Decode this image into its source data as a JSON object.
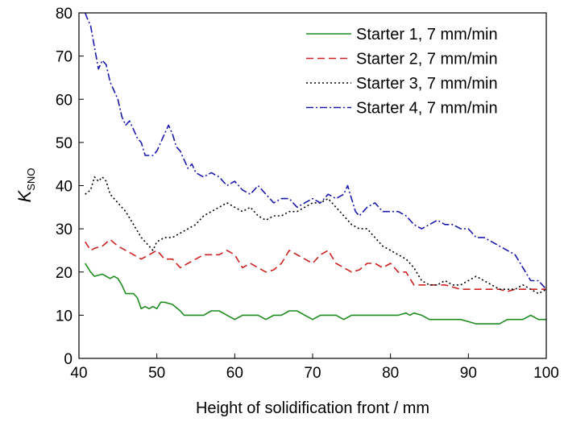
{
  "chart_data": {
    "type": "line",
    "title": "",
    "xlabel": "Height of solidification front / mm",
    "ylabel_main": "K",
    "ylabel_sub": "SNO",
    "xlim": [
      40,
      100
    ],
    "ylim": [
      0,
      80
    ],
    "xticks": [
      40,
      50,
      60,
      70,
      80,
      90,
      100
    ],
    "yticks": [
      0,
      10,
      20,
      30,
      40,
      50,
      60,
      70,
      80
    ],
    "grid": false,
    "legend_position": "top-right",
    "series": [
      {
        "name": "Starter 1, 7 mm/min",
        "color": "#1e8c1e",
        "dash": "solid",
        "x": [
          40.8,
          41.5,
          42,
          43,
          44,
          44.5,
          45,
          45.5,
          46,
          46.5,
          47,
          47.5,
          48,
          48.5,
          49,
          49.5,
          50,
          50.5,
          51,
          52,
          53,
          53.5,
          54,
          55,
          56,
          57,
          58,
          59,
          60,
          61,
          62,
          63,
          64,
          65,
          66,
          67,
          68,
          69,
          69.5,
          70,
          71,
          72,
          73,
          74,
          75,
          76,
          77,
          78,
          79,
          80,
          81,
          82,
          82.5,
          83,
          84,
          85,
          86,
          87,
          88,
          89,
          90,
          91,
          92,
          93,
          94,
          95,
          96,
          97,
          98,
          99,
          100
        ],
        "y": [
          22,
          20,
          19,
          19.5,
          18.5,
          19,
          18.5,
          17,
          15,
          15,
          15,
          14,
          11.5,
          12,
          11.5,
          12,
          11.5,
          13,
          13,
          12.5,
          11,
          10,
          10,
          10,
          10,
          11,
          11,
          10,
          9,
          10,
          10,
          10,
          9,
          10,
          10,
          11,
          11,
          10,
          9.5,
          9,
          10,
          10,
          10,
          9,
          10,
          10,
          10,
          10,
          10,
          10,
          10,
          10.5,
          10,
          10.5,
          10,
          9,
          9,
          9,
          9,
          9,
          8.5,
          8,
          8,
          8,
          8,
          9,
          9,
          9,
          10,
          9,
          9
        ]
      },
      {
        "name": "Starter 2, 7 mm/min",
        "color": "#cc2222",
        "dash": "dashed",
        "x": [
          40.8,
          41.5,
          42,
          43,
          44,
          45,
          46,
          47,
          48,
          49,
          50,
          51,
          52,
          53,
          54,
          55,
          56,
          57,
          58,
          59,
          60,
          61,
          62,
          63,
          64,
          65,
          66,
          67,
          68,
          69,
          70,
          71,
          72,
          73,
          74,
          75,
          76,
          77,
          78,
          79,
          80,
          81,
          82,
          83,
          84,
          85,
          86,
          87,
          88,
          89,
          90,
          91,
          92,
          93,
          94,
          95,
          96,
          97,
          98,
          99,
          100
        ],
        "y": [
          27,
          25,
          25.5,
          26,
          27.5,
          26,
          25,
          24,
          23,
          24,
          25,
          23,
          23,
          21,
          22,
          23,
          24,
          24,
          24,
          25,
          24,
          21,
          22,
          21,
          20,
          20.5,
          22,
          25,
          24,
          23,
          22,
          24,
          25,
          22,
          21,
          20,
          20.5,
          22,
          22,
          21,
          22,
          20,
          20,
          17,
          17,
          17,
          17,
          17,
          16.5,
          16,
          16,
          16,
          16,
          16,
          16,
          15.5,
          16,
          16,
          16,
          16,
          16
        ]
      },
      {
        "name": "Starter 3, 7 mm/min",
        "color": "#000000",
        "dash": "dotted",
        "x": [
          40.8,
          41.5,
          42,
          42.5,
          43,
          43.5,
          44,
          45,
          46,
          47,
          48,
          49,
          49.5,
          50,
          51,
          52,
          53,
          54,
          55,
          56,
          57,
          58,
          59,
          60,
          61,
          62,
          63,
          64,
          65,
          66,
          67,
          68,
          69,
          70,
          71,
          72,
          73,
          74,
          75,
          76,
          77,
          78,
          79,
          80,
          81,
          82,
          83,
          84,
          85,
          86,
          87,
          88,
          89,
          90,
          91,
          92,
          93,
          94,
          95,
          96,
          97,
          98,
          99,
          100
        ],
        "y": [
          38,
          39,
          42,
          41,
          42,
          41,
          38,
          36,
          34,
          31,
          28,
          26,
          25,
          27,
          28,
          28,
          29,
          30,
          31,
          33,
          34,
          35,
          36,
          35,
          34,
          35,
          33,
          32,
          33,
          33,
          34,
          34,
          35,
          36,
          36,
          37,
          35,
          33,
          31,
          30,
          30,
          28,
          26,
          25,
          24,
          23,
          21,
          18,
          17,
          17,
          18,
          17,
          17,
          18,
          19,
          18,
          17,
          16,
          16,
          16,
          17,
          16,
          15,
          16
        ]
      },
      {
        "name": "Starter 4, 7 mm/min",
        "color": "#1a1aaa",
        "dash": "dashdot",
        "x": [
          40.8,
          41,
          41.5,
          42,
          42.5,
          43,
          43.5,
          44,
          44.5,
          45,
          45.5,
          46,
          46.5,
          47,
          47.5,
          48,
          48.5,
          49,
          49.5,
          50,
          50.5,
          51,
          51.5,
          52,
          52.5,
          53,
          53.5,
          54,
          54.5,
          55,
          56,
          57,
          58,
          59,
          60,
          61,
          62,
          63,
          64,
          65,
          66,
          67,
          68,
          69,
          70,
          71,
          72,
          73,
          74,
          74.5,
          75,
          75.5,
          76,
          77,
          78,
          79,
          80,
          81,
          82,
          83,
          84,
          85,
          86,
          87,
          88,
          89,
          90,
          91,
          92,
          93,
          94,
          95,
          96,
          97,
          98,
          99,
          100
        ],
        "y": [
          80,
          79,
          77,
          72,
          67,
          69,
          68,
          64,
          62,
          60,
          56,
          54,
          55,
          53,
          51,
          50,
          47,
          47,
          47,
          48,
          50,
          52,
          54,
          52,
          49,
          48,
          46,
          44,
          45,
          43,
          42,
          43,
          42,
          40,
          41,
          39,
          38,
          40,
          38,
          36,
          37,
          37,
          35,
          36,
          37,
          36,
          38,
          37,
          38,
          40,
          37,
          34,
          33,
          35,
          36,
          34,
          34,
          34,
          33,
          31,
          30,
          31,
          32,
          31,
          31,
          30,
          30,
          28,
          28,
          27,
          26,
          25,
          24,
          21,
          18,
          18,
          16
        ]
      }
    ]
  }
}
